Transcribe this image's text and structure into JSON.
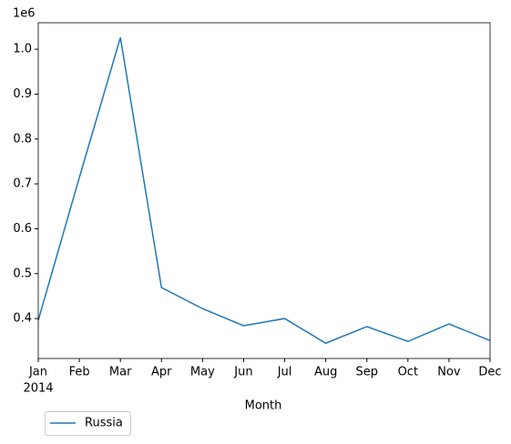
{
  "chart_data": {
    "type": "line",
    "categories": [
      "Jan",
      "Feb",
      "Mar",
      "Apr",
      "May",
      "Jun",
      "Jul",
      "Aug",
      "Sep",
      "Oct",
      "Nov",
      "Dec"
    ],
    "year_label": "2014",
    "x_label": "Month",
    "y_offset_label": "1e6",
    "series": [
      {
        "name": "Russia",
        "color": "#1f77b4",
        "values": [
          0.396,
          0.714,
          1.026,
          0.469,
          0.422,
          0.384,
          0.4,
          0.345,
          0.382,
          0.349,
          0.388,
          0.351
        ]
      }
    ],
    "ylim": [
      0.311,
      1.059
    ],
    "yticks": [
      0.4,
      0.5,
      0.6,
      0.7,
      0.8,
      0.9,
      {
        "value": 1.0,
        "label": "1.0"
      }
    ],
    "legend": "lower left outside"
  }
}
